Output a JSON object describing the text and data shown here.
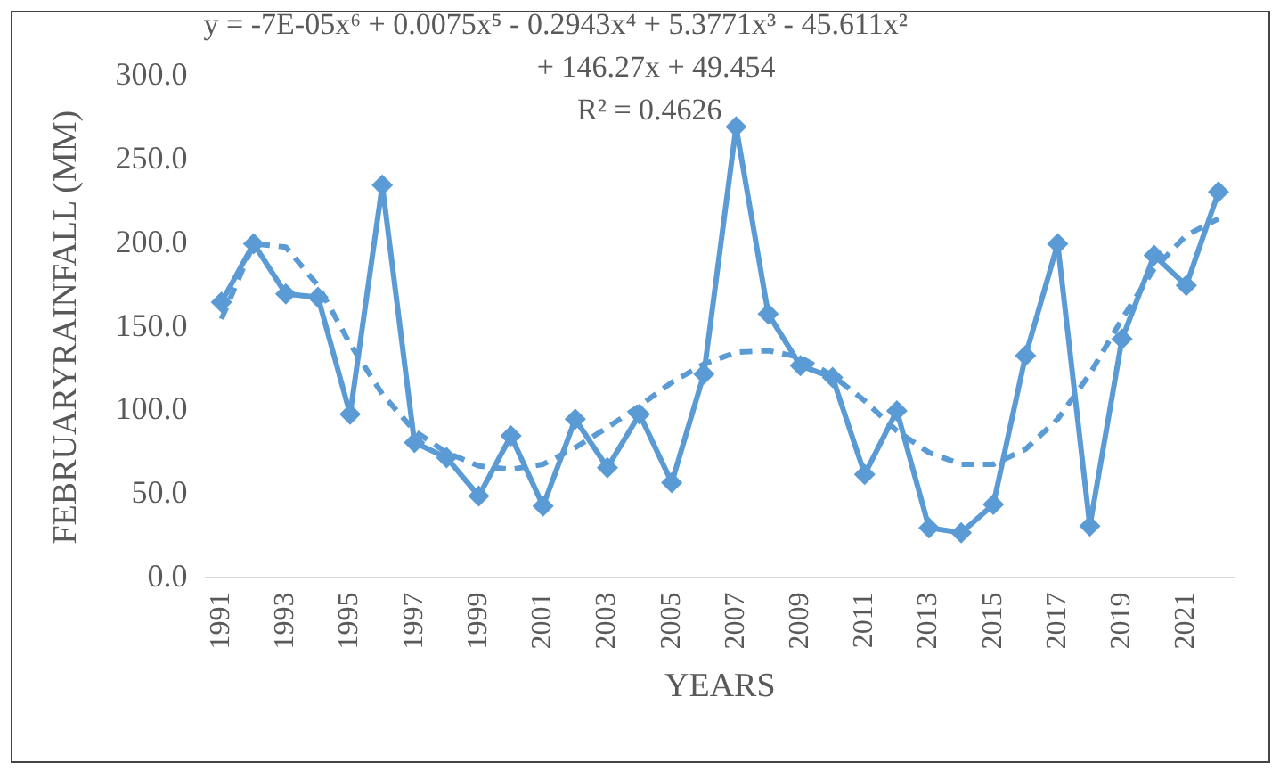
{
  "chart_data": {
    "type": "line",
    "xlabel": "YEARS",
    "ylabel": "FEBRUARYRAINFALL (MM)",
    "categories": [
      "1991",
      null,
      "1993",
      null,
      "1995",
      null,
      "1997",
      null,
      "1999",
      null,
      "2001",
      null,
      "2003",
      null,
      "2005",
      null,
      "2007",
      null,
      "2009",
      null,
      "2011",
      null,
      "2013",
      null,
      "2015",
      null,
      "2017",
      null,
      "2019",
      null,
      "2021",
      null
    ],
    "series": [
      {
        "color": "#5b9bd5",
        "marker": "diamond",
        "line_style": "solid",
        "values": [
          165,
          200,
          170,
          168,
          98,
          235,
          81,
          72,
          49,
          85,
          43,
          95,
          66,
          98,
          57,
          122,
          270,
          158,
          127,
          120,
          62,
          100,
          30,
          27,
          44,
          133,
          200,
          31,
          143,
          193,
          175,
          231
        ]
      },
      {
        "color": "#5b9bd5",
        "marker": "none",
        "line_style": "dashed",
        "values": [
          155,
          200,
          198,
          175,
          140,
          110,
          88,
          75,
          67,
          65,
          68,
          78,
          90,
          103,
          117,
          128,
          135,
          136,
          132,
          121,
          106,
          88,
          75,
          68,
          68,
          77,
          95,
          122,
          155,
          185,
          205,
          215
        ]
      }
    ],
    "ylim": [
      0,
      300
    ],
    "yticks": [
      {
        "value": 0,
        "label": "0.0"
      },
      {
        "value": 50,
        "label": "50.0"
      },
      {
        "value": 100,
        "label": "100.0"
      },
      {
        "value": 150,
        "label": "150.0"
      },
      {
        "value": 200,
        "label": "200.0"
      },
      {
        "value": 250,
        "label": "250.0"
      },
      {
        "value": 300,
        "label": "300.0"
      }
    ],
    "grid": false,
    "legend": false,
    "annotations": [
      "y = -7E-05x⁶ + 0.0075x⁵ - 0.2943x⁴ + 5.3771x³ - 45.611x²",
      "+ 146.27x + 49.454",
      "R² = 0.4626"
    ]
  }
}
